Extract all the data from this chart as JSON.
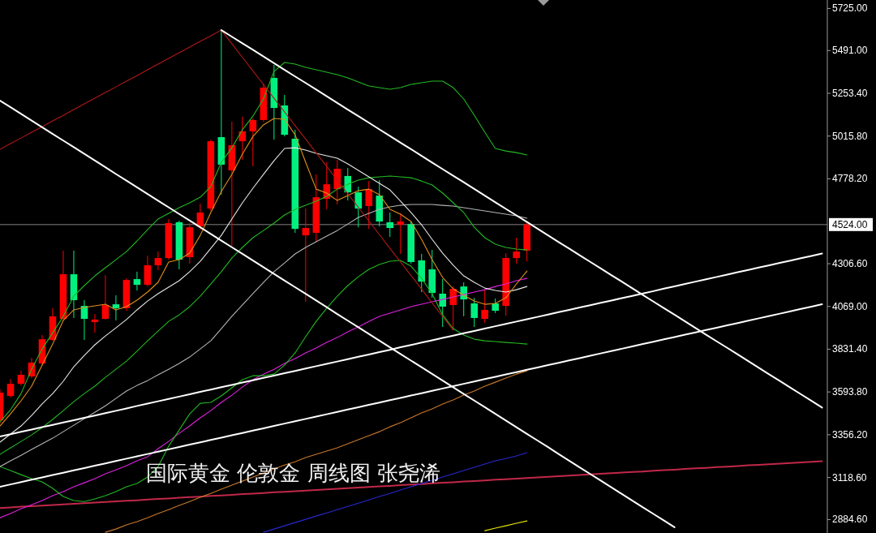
{
  "chart_data": {
    "type": "candlestick",
    "title": "国际黄金 伦敦金 周线图 张尧浠",
    "categories": [
      null,
      null,
      null,
      null,
      null,
      null,
      null,
      null,
      null,
      null,
      null,
      null,
      null,
      null,
      null,
      null,
      null,
      null,
      null,
      null,
      null,
      null,
      null,
      null,
      null,
      null,
      null,
      null,
      null,
      null,
      null,
      null,
      null,
      null,
      null,
      null,
      null,
      null,
      null,
      null,
      null,
      null,
      null,
      null,
      null,
      null,
      null,
      null,
      null,
      null,
      null,
      null,
      null,
      null,
      null,
      null,
      null,
      null,
      null,
      null,
      null,
      null,
      null,
      null,
      null,
      null,
      null,
      null,
      null,
      null,
      null,
      null,
      null,
      null,
      null,
      null,
      null,
      null,
      null
    ],
    "ohlc": [
      [
        3436,
        3608,
        3418,
        3590
      ],
      [
        3572,
        3666,
        3563,
        3639
      ],
      [
        3639,
        3711,
        3630,
        3689
      ],
      [
        3680,
        3784,
        3671,
        3757
      ],
      [
        3752,
        3910,
        3743,
        3887
      ],
      [
        3883,
        4059,
        3878,
        4014
      ],
      [
        4000,
        4379,
        3991,
        4248
      ],
      [
        4248,
        4379,
        4005,
        4104
      ],
      [
        4072,
        4104,
        3883,
        4000
      ],
      [
        3982,
        4027,
        3923,
        3996
      ],
      [
        4000,
        4243,
        3996,
        4077
      ],
      [
        4081,
        4131,
        3991,
        4059
      ],
      [
        4059,
        4225,
        4045,
        4216
      ],
      [
        4221,
        4262,
        4158,
        4189
      ],
      [
        4189,
        4352,
        4180,
        4298
      ],
      [
        4298,
        4374,
        4271,
        4338
      ],
      [
        4338,
        4555,
        4329,
        4532
      ],
      [
        4537,
        4546,
        4275,
        4329
      ],
      [
        4343,
        4532,
        4307,
        4509
      ],
      [
        4514,
        4640,
        4496,
        4591
      ],
      [
        4613,
        4996,
        4600,
        4987
      ],
      [
        5010,
        5605,
        4690,
        4857
      ],
      [
        4825,
        5096,
        4406,
        4965
      ],
      [
        4987,
        5123,
        4884,
        5042
      ],
      [
        5042,
        5114,
        4848,
        5105
      ],
      [
        5105,
        5308,
        5096,
        5285
      ],
      [
        5339,
        5411,
        4996,
        5172
      ],
      [
        5186,
        5244,
        5014,
        5023
      ],
      [
        5001,
        5051,
        4478,
        4500
      ],
      [
        4464,
        4613,
        4095,
        4505
      ],
      [
        4478,
        4803,
        4428,
        4676
      ],
      [
        4667,
        4870,
        4609,
        4748
      ],
      [
        4721,
        4884,
        4636,
        4834
      ],
      [
        4794,
        4839,
        4658,
        4703
      ],
      [
        4703,
        4735,
        4509,
        4613
      ],
      [
        4627,
        4766,
        4500,
        4721
      ],
      [
        4685,
        4771,
        4514,
        4541
      ],
      [
        4537,
        4591,
        4455,
        4505
      ],
      [
        4523,
        4586,
        4361,
        4541
      ],
      [
        4527,
        4541,
        4307,
        4316
      ],
      [
        4325,
        4361,
        4149,
        4207
      ],
      [
        4275,
        4383,
        4117,
        4144
      ],
      [
        4140,
        4221,
        3955,
        4068
      ],
      [
        4077,
        4180,
        3937,
        4167
      ],
      [
        4180,
        4203,
        4014,
        4108
      ],
      [
        4086,
        4117,
        3955,
        4005
      ],
      [
        4000,
        4162,
        3977,
        4050
      ],
      [
        4086,
        4113,
        4032,
        4045
      ],
      [
        4072,
        4365,
        4018,
        4338
      ],
      [
        4338,
        4451,
        4307,
        4374
      ],
      [
        4379,
        4541,
        4320,
        4524
      ],
      null,
      null,
      null,
      null,
      null,
      null,
      null,
      null,
      null,
      null,
      null,
      null,
      null,
      null,
      null,
      null,
      null,
      null,
      null,
      null,
      null,
      null,
      null,
      null,
      null,
      null,
      null,
      null
    ],
    "colors": [
      "#ff0000",
      "#ff0000",
      "#ff0000",
      "#ff0000",
      "#ff0000",
      "#ff0000",
      "#ff0000",
      "#00f080",
      "#00f080",
      "#ff0000",
      "#ff0000",
      "#00f080",
      "#ff0000",
      "#00f080",
      "#ff0000",
      "#ff0000",
      "#ff0000",
      "#00f080",
      "#ff0000",
      "#ff0000",
      "#ff0000",
      "#00f080",
      "#ff0000",
      "#ff0000",
      "#ff0000",
      "#ff0000",
      "#00f080",
      "#00f080",
      "#00f080",
      "#ff0000",
      "#ff0000",
      "#ff0000",
      "#ff0000",
      "#00f080",
      "#00f080",
      "#ff0000",
      "#00f080",
      "#00f080",
      "#ff0000",
      "#00f080",
      "#00f080",
      "#00f080",
      "#00f080",
      "#ff0000",
      "#00f080",
      "#00f080",
      "#ff0000",
      "#00f080",
      "#ff0000",
      "#ff0000",
      "#ff0000",
      null,
      null,
      null,
      null,
      null,
      null,
      null,
      null,
      null,
      null,
      null,
      null,
      null,
      null,
      null,
      null,
      null,
      null,
      null,
      null,
      null,
      null,
      null,
      null,
      null,
      null,
      null,
      null
    ],
    "series": [
      {
        "type": "line",
        "color": "#c02848",
        "values": [
          2949,
          2952,
          2956,
          2959,
          2962,
          2966,
          2969,
          2972,
          2976,
          2979,
          2982,
          2986,
          2989,
          2992,
          2996,
          2999,
          3002,
          3006,
          3009,
          3012,
          3016,
          3019,
          3022,
          3026,
          3029,
          3032,
          3036,
          3039,
          3042,
          3046,
          3049,
          3052,
          3056,
          3059,
          3062,
          3066,
          3069,
          3072,
          3076,
          3079,
          3082,
          3086,
          3089,
          3092,
          3096,
          3099,
          3102,
          3106,
          3109,
          3112,
          3116,
          3119,
          3122,
          3126,
          3129,
          3132,
          3136,
          3139,
          3142,
          3146,
          3149,
          3152,
          3156,
          3159,
          3162,
          3166,
          3169,
          3172,
          3176,
          3179,
          3182,
          3186,
          3189,
          3192,
          3196,
          3199,
          3202,
          3206,
          3209
        ]
      },
      {
        "type": "line",
        "color": "#2828d0",
        "values": [
          null,
          null,
          null,
          null,
          null,
          null,
          null,
          null,
          null,
          null,
          null,
          null,
          null,
          null,
          null,
          null,
          null,
          null,
          null,
          null,
          null,
          null,
          null,
          null,
          null,
          2814,
          2832,
          2850,
          2868,
          2886,
          2904,
          2922,
          2940,
          2958,
          2976,
          2994,
          3013,
          3030,
          3049,
          3067,
          3085,
          3103,
          3121,
          3139,
          3157,
          3175,
          3193,
          3211,
          3224,
          3238,
          3256,
          null,
          null,
          null,
          null,
          null,
          null,
          null,
          null,
          null,
          null,
          null,
          null,
          null,
          null,
          null,
          null,
          null,
          null,
          null,
          null,
          null,
          null,
          null,
          null,
          null,
          null,
          null,
          null
        ]
      },
      {
        "type": "line",
        "color": "#e6e600",
        "values": [
          null,
          null,
          null,
          null,
          null,
          null,
          null,
          null,
          null,
          null,
          null,
          null,
          null,
          null,
          null,
          null,
          null,
          null,
          null,
          null,
          null,
          null,
          null,
          null,
          null,
          null,
          null,
          null,
          null,
          null,
          null,
          null,
          null,
          null,
          null,
          null,
          null,
          null,
          null,
          null,
          null,
          null,
          null,
          null,
          null,
          null,
          2823,
          2837,
          2850,
          2864,
          2877,
          null,
          null,
          null,
          null,
          null,
          null,
          null,
          null,
          null,
          null,
          null,
          null,
          null,
          null,
          null,
          null,
          null,
          null,
          null,
          null,
          null,
          null,
          null,
          null,
          null,
          null,
          null,
          null
        ]
      },
      {
        "type": "line",
        "color": "#c8782a",
        "values": [
          null,
          null,
          null,
          null,
          null,
          null,
          null,
          null,
          null,
          null,
          2814,
          2832,
          2855,
          2873,
          2895,
          2918,
          2940,
          2963,
          2985,
          3008,
          3030,
          3053,
          3076,
          3098,
          3121,
          3143,
          3166,
          3188,
          3206,
          3229,
          3247,
          3265,
          3283,
          3306,
          3328,
          3351,
          3373,
          3400,
          3423,
          3450,
          3477,
          3500,
          3527,
          3549,
          3576,
          3599,
          3626,
          3648,
          3671,
          3693,
          3711,
          null,
          null,
          null,
          null,
          null,
          null,
          null,
          null,
          null,
          null,
          null,
          null,
          null,
          null,
          null,
          null,
          null,
          null,
          null,
          null,
          null,
          null,
          null,
          null,
          null,
          null,
          null,
          null
        ]
      },
      {
        "type": "line",
        "color": "#e020e0",
        "values": [
          2895,
          2918,
          2945,
          2967,
          2990,
          3017,
          3040,
          3067,
          3089,
          3112,
          3139,
          3161,
          3184,
          3211,
          3233,
          3279,
          3319,
          3364,
          3405,
          3450,
          3490,
          3536,
          3576,
          3621,
          3662,
          3693,
          3720,
          3752,
          3779,
          3811,
          3838,
          3869,
          3896,
          3928,
          3955,
          3986,
          4014,
          4032,
          4050,
          4068,
          4081,
          4095,
          4108,
          4122,
          4135,
          4149,
          4162,
          4180,
          4194,
          4212,
          4225,
          null,
          null,
          null,
          null,
          null,
          null,
          null,
          null,
          null,
          null,
          null,
          null,
          null,
          null,
          null,
          null,
          null,
          null,
          null,
          null,
          null,
          null,
          null,
          null,
          null,
          null,
          null,
          null
        ]
      },
      {
        "type": "line",
        "color": "#22b822",
        "values": [
          3179,
          3157,
          3134,
          3112,
          3094,
          3058,
          3013,
          2990,
          2985,
          2999,
          3017,
          3040,
          3067,
          3085,
          3121,
          3179,
          3292,
          3382,
          3472,
          3531,
          3536,
          3572,
          3617,
          3662,
          3684,
          3684,
          3693,
          3743,
          3811,
          3901,
          3986,
          4059,
          4126,
          4185,
          4234,
          4275,
          4302,
          4320,
          4325,
          4293,
          4225,
          4140,
          4022,
          3946,
          3910,
          3887,
          3878,
          3874,
          3869,
          3865,
          3860,
          null,
          null,
          null,
          null,
          null,
          null,
          null,
          null,
          null,
          null,
          null,
          null,
          null,
          null,
          null,
          null,
          null,
          null,
          null,
          null,
          null,
          null,
          null,
          null,
          null,
          null,
          null,
          null
        ]
      },
      {
        "type": "line",
        "color": "#b4b4b4",
        "values": [
          3179,
          3211,
          3242,
          3274,
          3306,
          3337,
          3373,
          3409,
          3445,
          3481,
          3517,
          3558,
          3599,
          3630,
          3657,
          3689,
          3720,
          3752,
          3788,
          3833,
          3878,
          3946,
          4014,
          4077,
          4140,
          4203,
          4262,
          4311,
          4361,
          4397,
          4428,
          4460,
          4491,
          4527,
          4564,
          4586,
          4609,
          4622,
          4631,
          4636,
          4636,
          4636,
          4631,
          4627,
          4618,
          4609,
          4600,
          4591,
          4582,
          4573,
          4559,
          null,
          null,
          null,
          null,
          null,
          null,
          null,
          null,
          null,
          null,
          null,
          null,
          null,
          null,
          null,
          null,
          null,
          null,
          null,
          null,
          null,
          null,
          null,
          null,
          null,
          null,
          null,
          null
        ]
      },
      {
        "type": "line",
        "color": "#22b822",
        "values": [
          3247,
          3283,
          3319,
          3355,
          3396,
          3441,
          3490,
          3540,
          3585,
          3626,
          3675,
          3720,
          3765,
          3820,
          3878,
          3932,
          3986,
          4022,
          4068,
          4126,
          4194,
          4262,
          4338,
          4397,
          4451,
          4491,
          4532,
          4577,
          4609,
          4631,
          4654,
          4681,
          4721,
          4748,
          4771,
          4784,
          4789,
          4794,
          4789,
          4784,
          4766,
          4744,
          4699,
          4645,
          4591,
          4509,
          4451,
          4415,
          4397,
          4388,
          4383,
          null,
          null,
          null,
          null,
          null,
          null,
          null,
          null,
          null,
          null,
          null,
          null,
          null,
          null,
          null,
          null,
          null,
          null,
          null,
          null,
          null,
          null,
          null,
          null,
          null,
          null,
          null,
          null
        ]
      },
      {
        "type": "line",
        "color": "#e8e8e8",
        "values": [
          3315,
          3360,
          3405,
          3463,
          3527,
          3585,
          3653,
          3734,
          3797,
          3856,
          3905,
          3950,
          3996,
          4050,
          4099,
          4140,
          4176,
          4212,
          4262,
          4320,
          4392,
          4464,
          4555,
          4645,
          4726,
          4803,
          4879,
          4947,
          4951,
          4938,
          4920,
          4906,
          4893,
          4861,
          4825,
          4789,
          4753,
          4717,
          4654,
          4591,
          4523,
          4442,
          4365,
          4298,
          4239,
          4203,
          4171,
          4158,
          4149,
          4162,
          4180,
          null,
          null,
          null,
          null,
          null,
          null,
          null,
          null,
          null,
          null,
          null,
          null,
          null,
          null,
          null,
          null,
          null,
          null,
          null,
          null,
          null,
          null,
          null,
          null,
          null,
          null,
          null,
          null
        ]
      },
      {
        "type": "line",
        "color": "#22b822",
        "values": [
          3427,
          3495,
          3585,
          3720,
          3833,
          3923,
          4014,
          4126,
          4185,
          4239,
          4284,
          4329,
          4374,
          4433,
          4496,
          4555,
          4586,
          4618,
          4645,
          4676,
          4735,
          4870,
          4951,
          5051,
          5127,
          5222,
          5375,
          5425,
          5416,
          5398,
          5384,
          5371,
          5357,
          5339,
          5317,
          5294,
          5285,
          5276,
          5285,
          5303,
          5312,
          5321,
          5321,
          5285,
          5222,
          5132,
          5037,
          4947,
          4933,
          4924,
          4911,
          null,
          null,
          null,
          null,
          null,
          null,
          null,
          null,
          null,
          null,
          null,
          null,
          null,
          null,
          null,
          null,
          null,
          null,
          null,
          null,
          null,
          null,
          null,
          null,
          null,
          null,
          null,
          null
        ]
      },
      {
        "type": "line",
        "color": "#e0901a",
        "values": [
          3405,
          3472,
          3545,
          3626,
          3743,
          3860,
          3991,
          4050,
          4063,
          4072,
          4081,
          4050,
          4068,
          4104,
          4149,
          4203,
          4316,
          4329,
          4365,
          4464,
          4591,
          4708,
          4803,
          4915,
          5014,
          5078,
          5114,
          5109,
          5023,
          4870,
          4721,
          4699,
          4658,
          4685,
          4712,
          4721,
          4690,
          4609,
          4582,
          4541,
          4442,
          4329,
          4230,
          4167,
          4131,
          4099,
          4081,
          4086,
          4117,
          4194,
          4266,
          null,
          null,
          null,
          null,
          null,
          null,
          null,
          null,
          null,
          null,
          null,
          null,
          null,
          null,
          null,
          null,
          null,
          null,
          null,
          null,
          null,
          null,
          null,
          null,
          null,
          null,
          null,
          null
        ]
      },
      {
        "type": "line",
        "color": "#b01818",
        "values": [
          4942,
          4974,
          5005,
          5037,
          5068,
          5100,
          5131,
          5163,
          5195,
          5226,
          5258,
          5289,
          5321,
          5352,
          5384,
          5416,
          5447,
          5479,
          5510,
          5542,
          5573,
          5605,
          null,
          null,
          null,
          null,
          null,
          null,
          null,
          null,
          null,
          null,
          null,
          null,
          null,
          null,
          null,
          null,
          null,
          null,
          null,
          null,
          null,
          null,
          null,
          null,
          null,
          null,
          null,
          null,
          null,
          null,
          null,
          null,
          null,
          null,
          null,
          null,
          null,
          null,
          null,
          null,
          null,
          null,
          null,
          null,
          null,
          null,
          null,
          null,
          null,
          null,
          null,
          null,
          null,
          null,
          null,
          null,
          null
        ]
      },
      {
        "type": "line",
        "color": "#b01818",
        "values": [
          null,
          null,
          null,
          null,
          null,
          null,
          null,
          null,
          null,
          null,
          null,
          null,
          null,
          null,
          null,
          null,
          null,
          null,
          null,
          null,
          null,
          5605,
          5529,
          5453,
          5378,
          5302,
          5226,
          5150,
          5074,
          4999,
          4923,
          4847,
          4771,
          4695,
          4620,
          4544,
          4468,
          4392,
          4316,
          4241,
          4165,
          4089,
          4013,
          3937,
          null,
          null,
          null,
          null,
          null,
          null,
          null,
          null,
          null,
          null,
          null,
          null,
          null,
          null,
          null,
          null,
          null,
          null,
          null,
          null,
          null,
          null,
          null,
          null,
          null,
          null,
          null,
          null,
          null,
          null,
          null,
          null,
          null,
          null,
          null
        ]
      },
      {
        "type": "line",
        "color": "#ffffff",
        "values": [
          null,
          null,
          null,
          null,
          null,
          null,
          null,
          null,
          null,
          null,
          null,
          null,
          null,
          null,
          null,
          null,
          null,
          null,
          null,
          null,
          null,
          5605,
          5568,
          5531,
          5495,
          5458,
          5421,
          5384,
          5347,
          5311,
          5274,
          5237,
          5200,
          5163,
          5127,
          5090,
          5053,
          5016,
          4979,
          4943,
          4906,
          4869,
          4832,
          4795,
          4759,
          4722,
          4685,
          4648,
          4611,
          4575,
          4538,
          4501,
          4464,
          4427,
          4391,
          4354,
          4317,
          4280,
          4243,
          4207,
          4170,
          4133,
          4096,
          4059,
          4023,
          3986,
          3949,
          3912,
          3875,
          3839,
          3802,
          3765,
          3728,
          3691,
          3655,
          3618,
          3581,
          3544,
          3507
        ]
      },
      {
        "type": "line",
        "color": "#ffffff",
        "values": [
          5213,
          5176,
          5139,
          5102,
          5065,
          5028,
          4991,
          4954,
          4917,
          4880,
          4843,
          4805,
          4768,
          4731,
          4694,
          4657,
          4620,
          4583,
          4546,
          4509,
          4472,
          4435,
          4398,
          4361,
          4324,
          4287,
          4250,
          4213,
          4176,
          4139,
          4102,
          4065,
          4027,
          3990,
          3953,
          3916,
          3879,
          3842,
          3805,
          3768,
          3731,
          3694,
          3657,
          3620,
          3583,
          3546,
          3509,
          3472,
          3435,
          3398,
          3361,
          3324,
          3287,
          3249,
          3212,
          3175,
          3138,
          3101,
          3064,
          3027,
          2990,
          2953,
          2916,
          2879,
          2842,
          null,
          null,
          null,
          null,
          null,
          null,
          null,
          null,
          null,
          null,
          null,
          null,
          null,
          null
        ]
      },
      {
        "type": "line",
        "color": "#ffffff",
        "values": [
          3346,
          3359,
          3372,
          3385,
          3398,
          3411,
          3424,
          3437,
          3450,
          3463,
          3476,
          3489,
          3502,
          3516,
          3529,
          3542,
          3555,
          3568,
          3581,
          3594,
          3607,
          3620,
          3633,
          3646,
          3659,
          3672,
          3685,
          3698,
          3711,
          3724,
          3737,
          3750,
          3763,
          3776,
          3789,
          3802,
          3815,
          3828,
          3842,
          3855,
          3868,
          3881,
          3894,
          3907,
          3920,
          3933,
          3946,
          3959,
          3972,
          3985,
          3998,
          4011,
          4024,
          4037,
          4050,
          4063,
          4076,
          4089,
          4102,
          4115,
          4128,
          4141,
          4154,
          4168,
          4181,
          4194,
          4207,
          4220,
          4233,
          4246,
          4259,
          4272,
          4285,
          4298,
          4311,
          4324,
          4337,
          4350,
          4363
        ]
      },
      {
        "type": "line",
        "color": "#ffffff",
        "values": [
          3067,
          3080,
          3093,
          3106,
          3119,
          3132,
          3145,
          3158,
          3171,
          3184,
          3197,
          3210,
          3223,
          3236,
          3249,
          3262,
          3275,
          3288,
          3301,
          3314,
          3327,
          3340,
          3353,
          3366,
          3379,
          3392,
          3405,
          3418,
          3431,
          3444,
          3457,
          3470,
          3483,
          3496,
          3509,
          3522,
          3535,
          3548,
          3561,
          3574,
          3587,
          3600,
          3613,
          3626,
          3639,
          3652,
          3665,
          3678,
          3691,
          3704,
          3717,
          3730,
          3743,
          3756,
          3769,
          3782,
          3795,
          3808,
          3821,
          3834,
          3847,
          3860,
          3873,
          3886,
          3899,
          3912,
          3925,
          3938,
          3951,
          3964,
          3977,
          3990,
          4003,
          4016,
          4029,
          4042,
          4055,
          4068,
          4081
        ]
      }
    ],
    "ylim": [
      2810,
      5772
    ],
    "yticks": [
      {
        "value": 5725,
        "label": "5725.00"
      },
      {
        "value": 5491,
        "label": "5491.00"
      },
      {
        "value": 5253.4,
        "label": "5253.40"
      },
      {
        "value": 5015.8,
        "label": "5015.80"
      },
      {
        "value": 4778.2,
        "label": "4778.20"
      },
      {
        "value": 4306.6,
        "label": "4306.60"
      },
      {
        "value": 4069,
        "label": "4069.00"
      },
      {
        "value": 3831.4,
        "label": "3831.40"
      },
      {
        "value": 3593.8,
        "label": "3593.80"
      },
      {
        "value": 3356.2,
        "label": "3356.20"
      },
      {
        "value": 3118.6,
        "label": "3118.60"
      },
      {
        "value": 2884.6,
        "label": "2884.60"
      }
    ],
    "ref_lines": [
      {
        "axis": "y",
        "value": 4524,
        "label": "4524.00",
        "color": "#808080"
      }
    ]
  }
}
